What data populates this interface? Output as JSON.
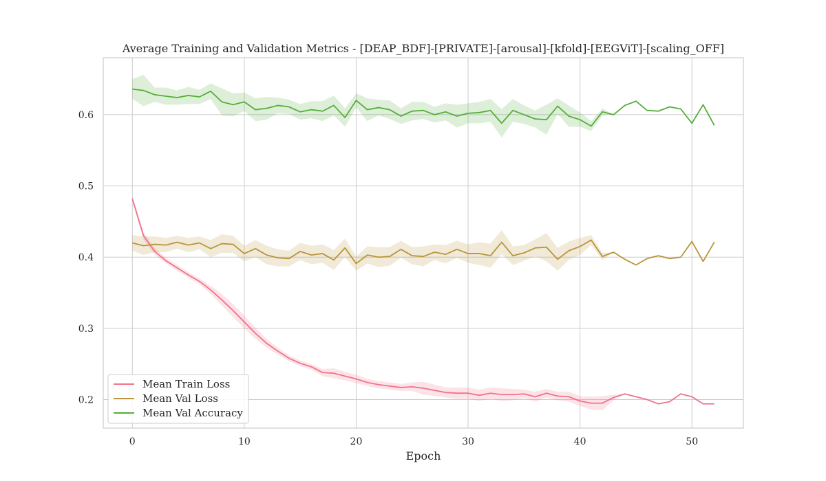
{
  "chart_data": {
    "type": "line",
    "title": "Average Training and Validation Metrics - [DEAP_BDF]-[PRIVATE]-[arousal]-[kfold]-[EEGViT]-[scaling_OFF]",
    "xlabel": "Epoch",
    "ylabel": "",
    "xlim": [
      -2.6,
      54.6
    ],
    "ylim": [
      0.16,
      0.68
    ],
    "xticks": [
      0,
      10,
      20,
      30,
      40,
      50
    ],
    "yticks": [
      0.2,
      0.3,
      0.4,
      0.5,
      0.6
    ],
    "grid": true,
    "legend_position": "lower-left",
    "x": [
      0,
      1,
      2,
      3,
      4,
      5,
      6,
      7,
      8,
      9,
      10,
      11,
      12,
      13,
      14,
      15,
      16,
      17,
      18,
      19,
      20,
      21,
      22,
      23,
      24,
      25,
      26,
      27,
      28,
      29,
      30,
      31,
      32,
      33,
      34,
      35,
      36,
      37,
      38,
      39,
      40,
      41,
      42,
      43,
      44,
      45,
      46,
      47,
      48,
      49,
      50,
      51,
      52
    ],
    "series": [
      {
        "name": "Mean Train Loss",
        "color": "#f0728a",
        "values": [
          0.482,
          0.43,
          0.408,
          0.395,
          0.385,
          0.375,
          0.366,
          0.354,
          0.34,
          0.325,
          0.309,
          0.293,
          0.279,
          0.268,
          0.258,
          0.251,
          0.246,
          0.238,
          0.237,
          0.233,
          0.229,
          0.224,
          0.221,
          0.219,
          0.217,
          0.218,
          0.216,
          0.213,
          0.21,
          0.209,
          0.209,
          0.206,
          0.209,
          0.207,
          0.207,
          0.208,
          0.204,
          0.209,
          0.205,
          0.204,
          0.198,
          0.195,
          0.195,
          0.203,
          0.208,
          0.204,
          0.2,
          0.194,
          0.197,
          0.208,
          0.204,
          0.194,
          0.194
        ],
        "band": [
          0.004,
          0.005,
          0.005,
          0.004,
          0.004,
          0.004,
          0.004,
          0.006,
          0.008,
          0.009,
          0.009,
          0.008,
          0.006,
          0.005,
          0.004,
          0.004,
          0.004,
          0.005,
          0.007,
          0.006,
          0.006,
          0.005,
          0.005,
          0.005,
          0.005,
          0.006,
          0.009,
          0.008,
          0.007,
          0.008,
          0.008,
          0.008,
          0.008,
          0.009,
          0.008,
          0.006,
          0.007,
          0.006,
          0.006,
          0.007,
          0.007,
          0.009,
          0.01,
          0.004,
          0,
          0,
          0,
          0,
          0,
          0,
          0,
          0,
          0
        ]
      },
      {
        "name": "Mean Val Loss",
        "color": "#b9943a",
        "values": [
          0.42,
          0.416,
          0.418,
          0.417,
          0.421,
          0.417,
          0.42,
          0.412,
          0.419,
          0.418,
          0.405,
          0.412,
          0.403,
          0.399,
          0.398,
          0.408,
          0.403,
          0.405,
          0.396,
          0.413,
          0.391,
          0.403,
          0.4,
          0.401,
          0.411,
          0.402,
          0.401,
          0.407,
          0.404,
          0.411,
          0.405,
          0.405,
          0.402,
          0.421,
          0.402,
          0.406,
          0.413,
          0.414,
          0.397,
          0.409,
          0.415,
          0.424,
          0.401,
          0.407,
          0.397,
          0.389,
          0.398,
          0.402,
          0.398,
          0.4,
          0.422,
          0.394,
          0.421
        ],
        "band": [
          0.011,
          0.013,
          0.011,
          0.01,
          0.009,
          0.01,
          0.009,
          0.012,
          0.013,
          0.012,
          0.011,
          0.012,
          0.013,
          0.012,
          0.011,
          0.012,
          0.013,
          0.013,
          0.014,
          0.013,
          0.01,
          0.012,
          0.014,
          0.013,
          0.012,
          0.012,
          0.014,
          0.011,
          0.013,
          0.012,
          0.013,
          0.016,
          0.017,
          0.017,
          0.013,
          0.011,
          0.012,
          0.02,
          0.016,
          0.013,
          0.012,
          0.007,
          0.005,
          0,
          0,
          0,
          0,
          0,
          0,
          0,
          0,
          0,
          0
        ]
      },
      {
        "name": "Mean Val Accuracy",
        "color": "#55ad3a",
        "values": [
          0.636,
          0.634,
          0.628,
          0.626,
          0.624,
          0.627,
          0.625,
          0.633,
          0.618,
          0.614,
          0.618,
          0.607,
          0.609,
          0.613,
          0.611,
          0.604,
          0.607,
          0.605,
          0.613,
          0.596,
          0.62,
          0.607,
          0.61,
          0.607,
          0.598,
          0.605,
          0.606,
          0.6,
          0.604,
          0.598,
          0.602,
          0.603,
          0.606,
          0.588,
          0.606,
          0.6,
          0.594,
          0.593,
          0.612,
          0.598,
          0.593,
          0.584,
          0.604,
          0.6,
          0.613,
          0.619,
          0.606,
          0.605,
          0.611,
          0.608,
          0.588,
          0.614,
          0.585
        ],
        "band": [
          0.014,
          0.022,
          0.01,
          0.012,
          0.01,
          0.012,
          0.01,
          0.011,
          0.019,
          0.016,
          0.013,
          0.016,
          0.016,
          0.011,
          0.01,
          0.011,
          0.012,
          0.014,
          0.014,
          0.013,
          0.01,
          0.016,
          0.011,
          0.013,
          0.011,
          0.013,
          0.012,
          0.011,
          0.012,
          0.016,
          0.014,
          0.015,
          0.016,
          0.02,
          0.016,
          0.013,
          0.012,
          0.021,
          0.011,
          0.015,
          0.01,
          0.007,
          0.005,
          0,
          0,
          0,
          0,
          0,
          0,
          0,
          0,
          0,
          0
        ]
      }
    ]
  }
}
